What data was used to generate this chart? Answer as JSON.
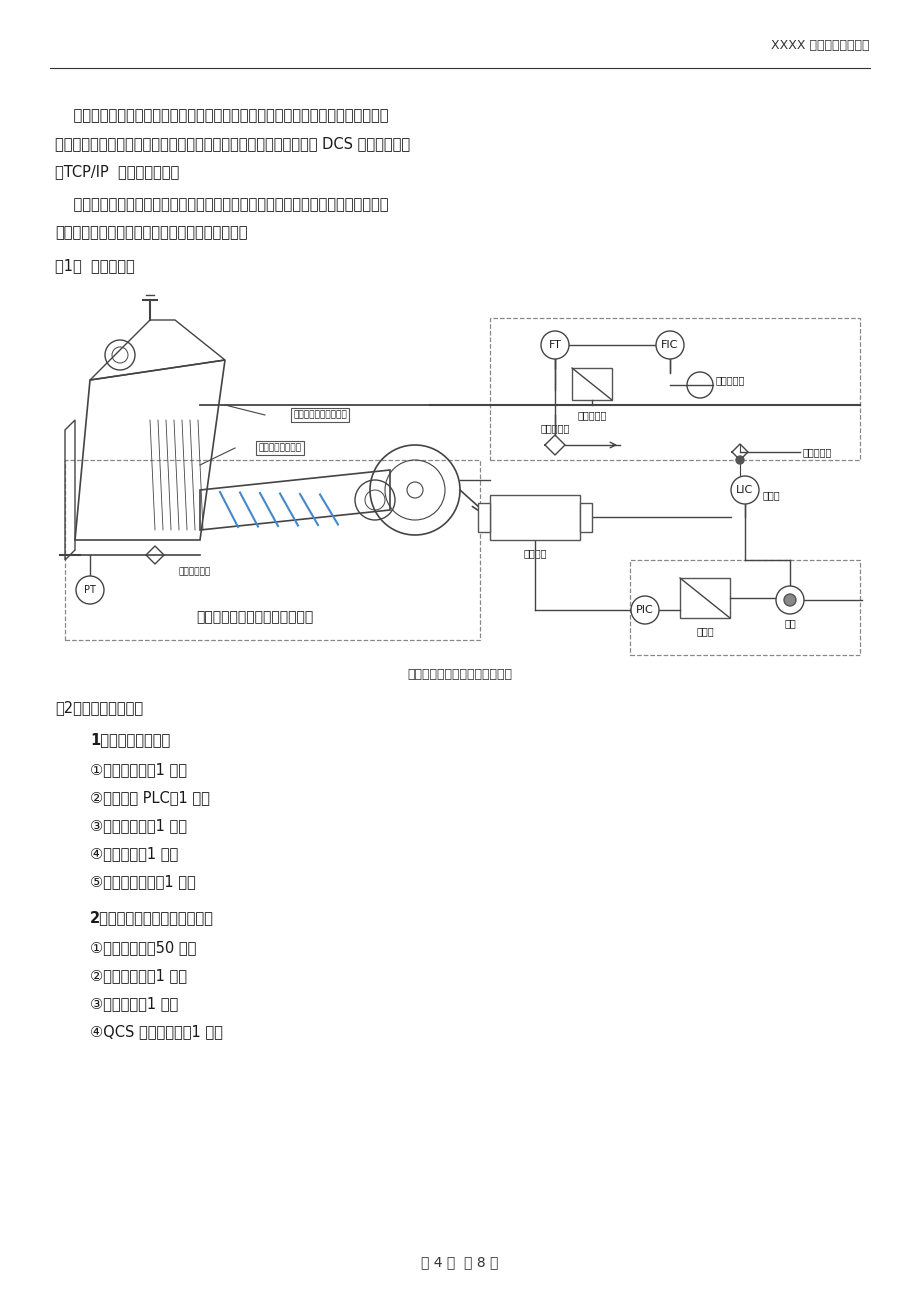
{
  "header_text": "XXXX 纸业公司技术方案",
  "footer_text": "第 4 页  共 8 页",
  "bg_color": "#ffffff",
  "text_color": "#1a1a1a",
  "para1_lines": [
    "    水力式流浆箱的喷浆速度控制采用电脑自动控制方式。在更改纸种、调整车速、开",
    "机等情况时速度比较快。有方便的查询及管理功能。控制系统留有与 DCS 相连的接口。",
    "（TCP/IP  或模拟信号线）"
  ],
  "para2_lines": [
    "    流浆箱控制系统可以与纸机其他设备进行联锁控制，以保证操作安全。控制逻辑由",
    "用户提供。且用户可以根据自己的需要进行修改。"
  ],
  "section1_label": "（1）  控制流程图",
  "diagram_caption": "美辰水力式流浆箱控制系统框图",
  "section2_label": "（2）控制系统配置：",
  "bold_title1": "1、浆速控制系统：",
  "items1": [
    "①总压变送器：1 台；",
    "②主控制器 PLC：1 个；",
    "③控制计算机：1 台；",
    "④控制机柜：1 只；",
    "⑤控制系统软件：1 套。"
  ],
  "bold_title2": "2、稀释水横幅定量调节系统：",
  "items2": [
    "①智能调节阀：50 个；",
    "②总线接口板：1 个；",
    "③电源系统：1 套；",
    "④QCS 网络接口卡：1 块；"
  ],
  "line_color": "#444444",
  "box_edge_color": "#555555"
}
